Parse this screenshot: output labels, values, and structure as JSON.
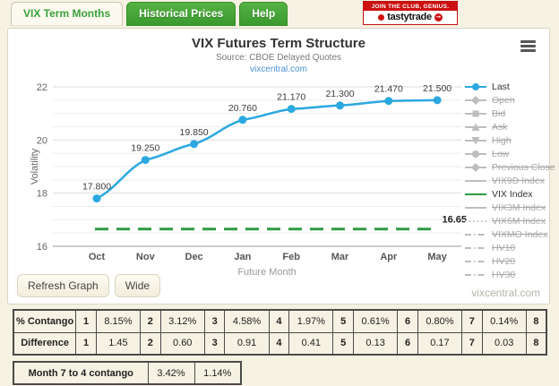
{
  "tabs": [
    {
      "label": "VIX Term Months",
      "active": true
    },
    {
      "label": "Historical Prices",
      "active": false
    },
    {
      "label": "Help",
      "active": false
    }
  ],
  "ad": {
    "line1": "JOIN THE CLUB, GENIUS.",
    "line2": "tastytrade"
  },
  "chart": {
    "title": "VIX Futures Term Structure",
    "subtitle": "Source: CBOE Delayed Quotes",
    "link": "vixcentral.com"
  },
  "chart_data": {
    "type": "line",
    "title": "VIX Futures Term Structure",
    "categories": [
      "Oct",
      "Nov",
      "Dec",
      "Jan",
      "Feb",
      "Mar",
      "Apr",
      "May"
    ],
    "series": [
      {
        "name": "Last",
        "values": [
          17.8,
          19.25,
          19.85,
          20.76,
          21.17,
          21.3,
          21.47,
          21.5
        ],
        "point_labels": [
          "17.800",
          "19.250",
          "19.850",
          "20.760",
          "21.170",
          "21.300",
          "21.470",
          "21.500"
        ],
        "color": "#2CA8E0"
      }
    ],
    "reference_line": {
      "name": "VIX Index",
      "value": 16.65,
      "label": "16.65",
      "color": "#2E9B40",
      "style": "dashed"
    },
    "xlabel": "Future Month",
    "ylabel": "Volatility",
    "ylim": [
      16,
      22
    ],
    "ytick_labels": [
      "16",
      "18",
      "20",
      "22"
    ],
    "minor_grid_interval": 0.5,
    "grid": true,
    "legend_position": "right"
  },
  "legend": {
    "items": [
      {
        "label": "Last",
        "active": true,
        "color": "#2CA8E0",
        "marker": "circle",
        "line": "solid"
      },
      {
        "label": "Open",
        "active": false,
        "color": "#BDBDBD",
        "marker": "diamond",
        "line": "solid"
      },
      {
        "label": "Bid",
        "active": false,
        "color": "#BDBDBD",
        "marker": "square",
        "line": "solid"
      },
      {
        "label": "Ask",
        "active": false,
        "color": "#BDBDBD",
        "marker": "triangle-up",
        "line": "solid"
      },
      {
        "label": "High",
        "active": false,
        "color": "#BDBDBD",
        "marker": "triangle-down",
        "line": "solid"
      },
      {
        "label": "Low",
        "active": false,
        "color": "#BDBDBD",
        "marker": "circle",
        "line": "solid"
      },
      {
        "label": "Previous Close",
        "active": false,
        "color": "#BDBDBD",
        "marker": "diamond",
        "line": "solid"
      },
      {
        "label": "VIX9D Index",
        "active": false,
        "color": "#BDBDBD",
        "marker": "none",
        "line": "solid"
      },
      {
        "label": "VIX Index",
        "active": true,
        "color": "#2E9B40",
        "marker": "none",
        "line": "solid"
      },
      {
        "label": "VIX3M Index",
        "active": false,
        "color": "#BDBDBD",
        "marker": "none",
        "line": "solid"
      },
      {
        "label": "VIX6M Index",
        "active": false,
        "color": "#BDBDBD",
        "marker": "none",
        "line": "dotted"
      },
      {
        "label": "VIXMO Index",
        "active": false,
        "color": "#BDBDBD",
        "marker": "none",
        "line": "dashdot"
      },
      {
        "label": "HV10",
        "active": false,
        "color": "#BDBDBD",
        "marker": "none",
        "line": "dashdot"
      },
      {
        "label": "HV20",
        "active": false,
        "color": "#BDBDBD",
        "marker": "none",
        "line": "dashdot"
      },
      {
        "label": "HV30",
        "active": false,
        "color": "#BDBDBD",
        "marker": "none",
        "line": "dashdot"
      }
    ]
  },
  "buttons": {
    "refresh": "Refresh Graph",
    "wide": "Wide"
  },
  "watermark": "vixcentral.com",
  "tables": {
    "contango": {
      "rows": [
        {
          "label": "% Contango",
          "cells": [
            "1",
            "8.15%",
            "2",
            "3.12%",
            "3",
            "4.58%",
            "4",
            "1.97%",
            "5",
            "0.61%",
            "6",
            "0.80%",
            "7",
            "0.14%",
            "8"
          ]
        },
        {
          "label": "Difference",
          "cells": [
            "1",
            "1.45",
            "2",
            "0.60",
            "3",
            "0.91",
            "4",
            "0.41",
            "5",
            "0.13",
            "6",
            "0.17",
            "7",
            "0.03",
            "8"
          ]
        }
      ]
    },
    "month_contango": {
      "label": "Month 7 to 4 contango",
      "values": [
        "3.42%",
        "1.14%"
      ]
    }
  },
  "colors": {
    "page_bg": "#F6F2E3",
    "panel_bg": "#FFFFFF",
    "tab_green": "#3A9A2F",
    "accent_blue": "#2CA8E0",
    "accent_green": "#2E9B40",
    "ad_red": "#CC1010"
  }
}
